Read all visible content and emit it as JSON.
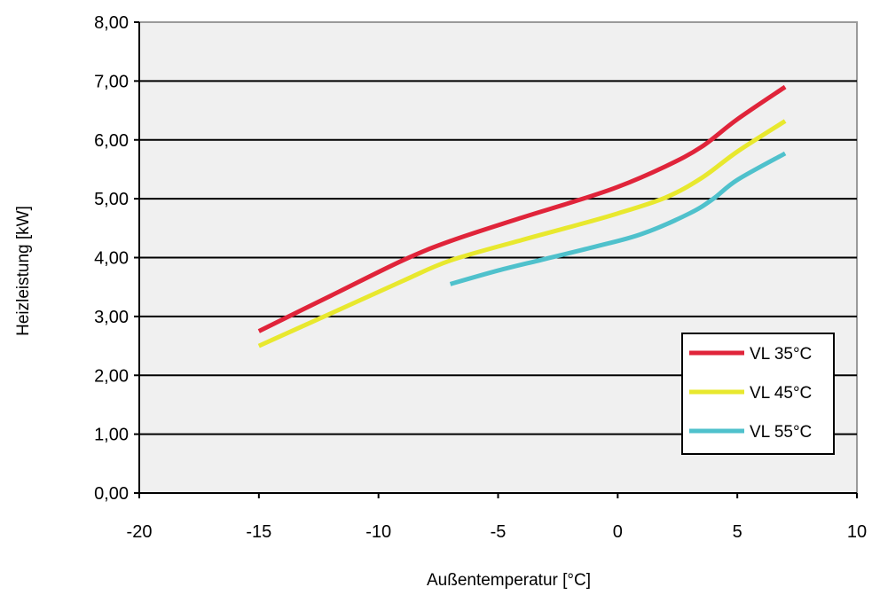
{
  "chart_data": {
    "type": "line",
    "title": "",
    "xlabel": "Außentemperatur [°C]",
    "ylabel": "Heizleistung [kW]",
    "xlim": [
      -20,
      10
    ],
    "ylim": [
      0,
      8
    ],
    "x_ticks": [
      "-20",
      "-15",
      "-10",
      "-5",
      "0",
      "5",
      "10"
    ],
    "x_tick_values": [
      -20,
      -15,
      -10,
      -5,
      0,
      5,
      10
    ],
    "y_ticks": [
      "0,00",
      "1,00",
      "2,00",
      "3,00",
      "4,00",
      "5,00",
      "6,00",
      "7,00",
      "8,00"
    ],
    "y_tick_values": [
      0,
      1,
      2,
      3,
      4,
      5,
      6,
      7,
      8
    ],
    "grid": "horizontal",
    "legend_position": "bottom-right",
    "plot_background": "#f0f0f0",
    "series": [
      {
        "name": "VL 35°C",
        "color": "#e0243a",
        "x": [
          -15,
          -12,
          -9,
          -7,
          -4,
          -2,
          0,
          2,
          3.5,
          5,
          7
        ],
        "y": [
          2.75,
          3.35,
          3.95,
          4.28,
          4.68,
          4.93,
          5.2,
          5.55,
          5.88,
          6.35,
          6.9
        ]
      },
      {
        "name": "VL 45°C",
        "color": "#e8e82e",
        "x": [
          -15,
          -12,
          -9,
          -7,
          -4,
          -2,
          0,
          2,
          3.5,
          5,
          7
        ],
        "y": [
          2.5,
          3.05,
          3.6,
          3.95,
          4.3,
          4.52,
          4.75,
          5.02,
          5.35,
          5.8,
          6.32
        ]
      },
      {
        "name": "VL 55°C",
        "color": "#4fc1cc",
        "x": [
          -7,
          -5,
          -3,
          -1,
          1,
          3,
          4,
          5,
          7
        ],
        "y": [
          3.55,
          3.78,
          3.98,
          4.18,
          4.4,
          4.75,
          5.0,
          5.32,
          5.77
        ]
      }
    ]
  }
}
